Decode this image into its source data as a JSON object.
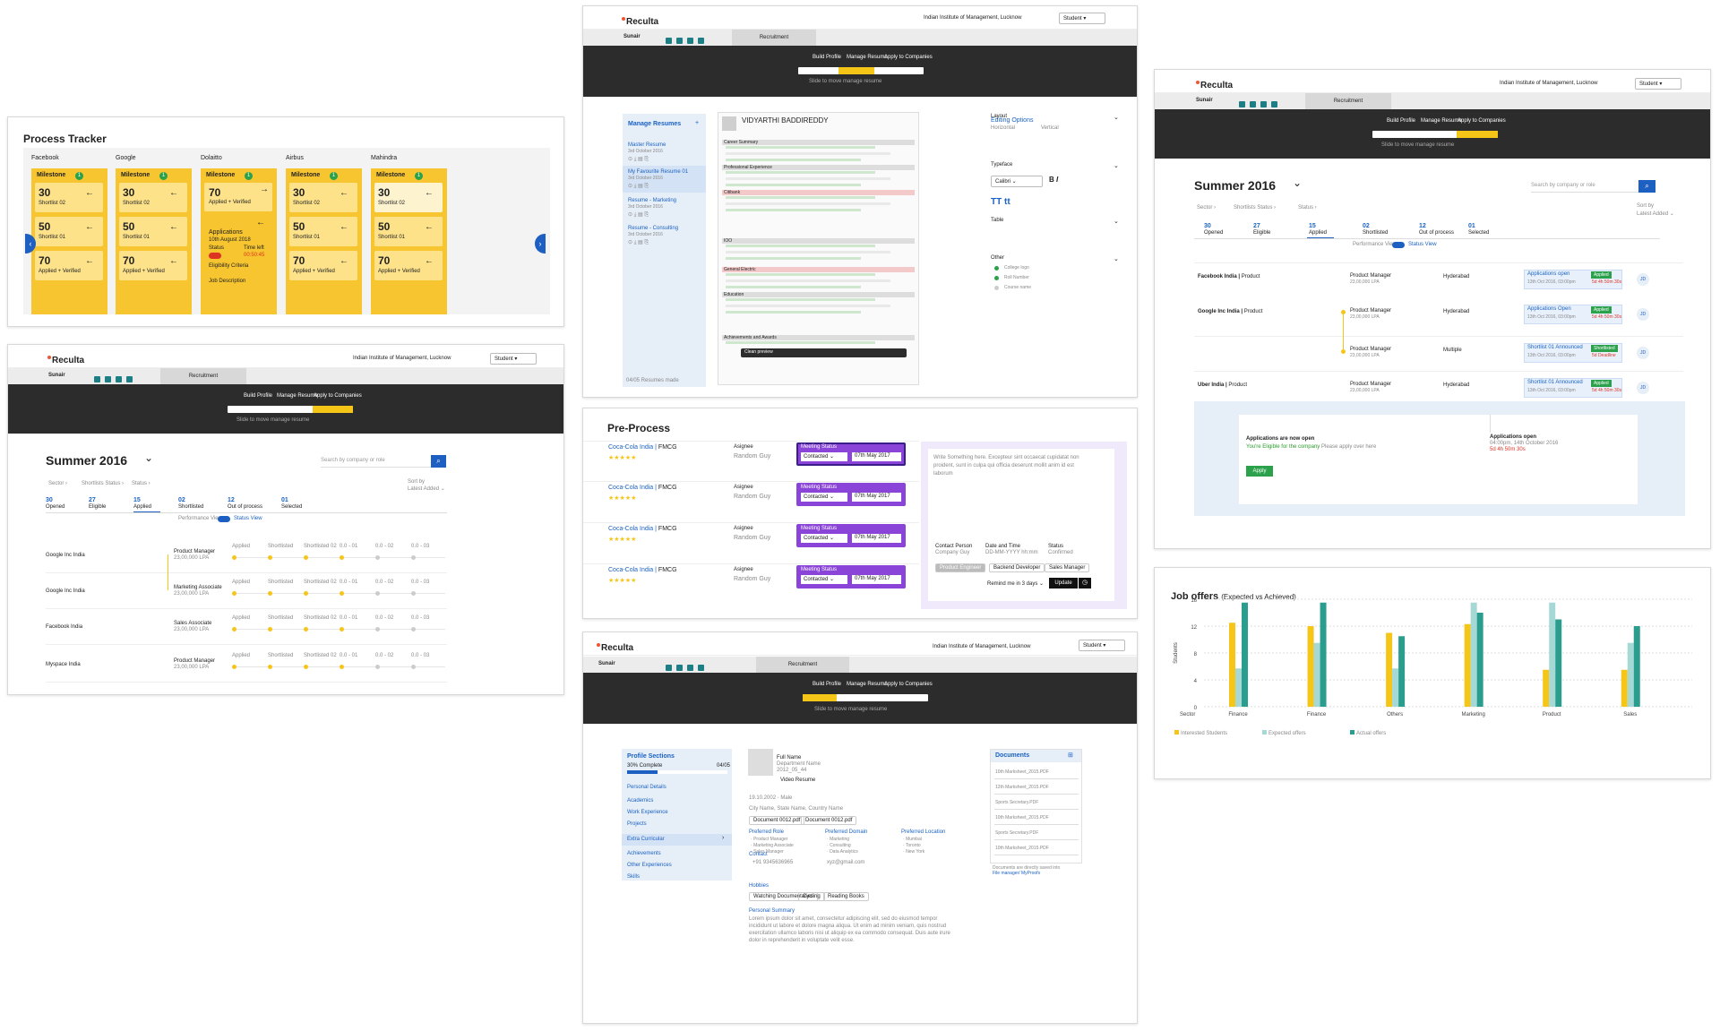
{
  "process": {
    "title": "Process Tracker",
    "companies": [
      "Facebook",
      "Google",
      "Dolaitto",
      "Airbus",
      "Mahindra"
    ],
    "milestone": "Milestone",
    "m_count": "1",
    "n30": "30",
    "l30": "Shortlist 02",
    "n50": "50",
    "l50": "Shortlist 01",
    "n70": "70",
    "l70": "Applied + Verified",
    "d_apps": "Applications",
    "d_date": "10th August 2018",
    "d_status": "Status",
    "d_time": "Time left",
    "d_clock": "00:50:45",
    "d_elig": "Eligibility Criteria",
    "d_job": "Job Description"
  },
  "p2": {
    "logo": "Reculta",
    "inst": "Indian Institute of Management, Lucknow",
    "role": "Student",
    "user": "Sunair",
    "tab": "Recruitment",
    "steps": [
      "Build Profile",
      "Manage Resume",
      "Apply to Companies"
    ],
    "hint": "Slide to move manage resume",
    "title": "Summer 2016",
    "search": "Search by company or role",
    "filters": [
      "Sector",
      "Shortlists Status",
      "Status"
    ],
    "sortby": "Sort by",
    "sortval": "Latest Added",
    "stats": [
      {
        "n": "30",
        "l": "Opened"
      },
      {
        "n": "27",
        "l": "Eligible"
      },
      {
        "n": "15",
        "l": "Applied"
      },
      {
        "n": "02",
        "l": "Shortlisted"
      },
      {
        "n": "12",
        "l": "Out of process"
      },
      {
        "n": "01",
        "l": "Selected"
      }
    ],
    "view_a": "Performance View",
    "view_b": "Status View",
    "rows": [
      {
        "c": "Google Inc India",
        "r": "Product Manager",
        "s": "23,00,000 LPA"
      },
      {
        "c": "Google Inc India",
        "r": "Marketing Associate",
        "s": "23,00,000 LPA"
      },
      {
        "c": "Facebook India",
        "r": "Sales Associate",
        "s": "23,00,000 LPA"
      },
      {
        "c": "Myspace India",
        "r": "Product Manager",
        "s": "23,00,000 LPA"
      }
    ],
    "tl": [
      "Applied",
      "Shortlisted",
      "Shortlisted 02",
      "0.0 - 01",
      "0.0 - 02",
      "0.0 - 03"
    ]
  },
  "p3": {
    "logo": "Reculta",
    "inst": "Indian Institute of Management, Lucknow",
    "role": "Student",
    "user": "Sunair",
    "tab": "Recruitment",
    "steps": [
      "Build Profile",
      "Manage Resume",
      "Apply to Companies"
    ],
    "hint": "Slide to move manage resume",
    "side_title": "Manage Resumes",
    "resumes": [
      {
        "n": "Master Resume",
        "d": "3rd October 2016"
      },
      {
        "n": "My Favourite Resume 01",
        "d": "3rd October 2016"
      },
      {
        "n": "Resume - Marketing",
        "d": "3rd October 2016"
      },
      {
        "n": "Resume - Consulting",
        "d": "3rd October 2016"
      }
    ],
    "name": "VIDYARTHI BADDIREDDY",
    "sections": [
      "Career Summary",
      "Professional Experience",
      "Citibank",
      "IOO",
      "General Electric",
      "Education",
      "Achievements and Awards"
    ],
    "edit_title": "Editing Options",
    "groups": [
      "Layout",
      "Typeface",
      "Table",
      "Other"
    ],
    "lay": [
      "Horizontal",
      "Vertical"
    ],
    "font": "Calibri",
    "other": [
      "College logo",
      "Roll Number",
      "Course name"
    ],
    "footer": "04/05 Resumes made",
    "clean": "Clean preview"
  },
  "p4": {
    "title": "Pre-Process",
    "rows": [
      {
        "c": "Coca-Cola India",
        "s": "FMCG",
        "a": "Asignee",
        "n": "Random Guy",
        "ms": "Meeting Status",
        "st": "Contacted",
        "d": "07th May 2017"
      },
      {
        "c": "Coca-Cola India",
        "s": "FMCG",
        "a": "Asignee",
        "n": "Random Guy",
        "ms": "Meeting Status",
        "st": "Contacted",
        "d": "07th May 2017"
      },
      {
        "c": "Coca-Cola India",
        "s": "FMCG",
        "a": "Asignee",
        "n": "Random Guy",
        "ms": "Meeting Status",
        "st": "Contacted",
        "d": "07th May 2017"
      },
      {
        "c": "Coca-Cola India",
        "s": "FMCG",
        "a": "Asignee",
        "n": "Random Guy",
        "ms": "Meeting Status",
        "st": "Contacted",
        "d": "07th May 2017"
      }
    ],
    "note": "Write Something here. Excepteur sint occaecat cupidatat non proident, sunt in culpa qui officia deserunt mollit anim id est laborum",
    "cp": "Contact Person",
    "cpv": "Company Guy",
    "dt": "Date and Time",
    "dtv": "DD-MM-YYYY hh:mm",
    "stl": "Status",
    "stv": "Confirmed",
    "chips": [
      "Product Engineer",
      "Backend Developer",
      "Sales Manager"
    ],
    "remind": "Remind me in 3 days",
    "update": "Update"
  },
  "p5": {
    "logo": "Reculta",
    "inst": "Indian Institute of Management, Lucknow",
    "role": "Student",
    "user": "Sunair",
    "tab": "Recruitment",
    "steps": [
      "Build Profile",
      "Manage Resume",
      "Apply to Companies"
    ],
    "hint": "Slide to move manage resume",
    "side_title": "Profile Sections",
    "complete": "30% Complete",
    "count": "04/05",
    "menu": [
      "Personal Details",
      "Academics",
      "Work Experience",
      "Projects",
      "Extra Curricular",
      "Achievements",
      "Other Experiences",
      "Skills"
    ],
    "full": "Full Name",
    "dept": "Department Name",
    "year": "2012_05_44",
    "video": "Video Resume",
    "dob": "19.10.2002 · Male",
    "addr": "City Name, State Name, Country Name",
    "docs": [
      "Document 0012.pdf",
      "Document 0012.pdf"
    ],
    "pref": [
      {
        "h": "Preferred Role",
        "v": [
          "Product Manager",
          "Marketing Associate",
          "Sales Manager"
        ]
      },
      {
        "h": "Preferred Domain",
        "v": [
          "Marketing",
          "Consulting",
          "Data Analytics"
        ]
      },
      {
        "h": "Preferred Location",
        "v": [
          "Mumbai",
          "Toronto",
          "New York"
        ]
      }
    ],
    "contact": "Contact",
    "phone": "+91 9345636965",
    "mail": "xyz@gmail.com",
    "hobbies": "Hobbies",
    "hob": [
      "Watching Documentaries",
      "Cycling",
      "Reading Books"
    ],
    "summary": "Personal Summary",
    "summary_text": "Lorem ipsum dolor sit amet, consectetur adipiscing elit, sed do eiusmod tempor incididunt ut labore et dolore magna aliqua. Ut enim ad minim veniam, quis nostrud exercitation ullamco laboris nisi ut aliquip ex ea commodo consequat. Duis aute irure dolor in reprehenderit in voluptate velit esse.",
    "doc_title": "Documents",
    "doc_list": [
      "10th Marksheet_2015.PDF",
      "12th Marksheet_2015.PDF",
      "Sports Secretary.PDF",
      "10th Marksheet_2015.PDF",
      "Sports Secretary.PDF",
      "10th Marksheet_2015.PDF"
    ],
    "doc_note": "Documents are directly saved into",
    "doc_link": "File manager/ MyProofs"
  },
  "p6": {
    "logo": "Reculta",
    "inst": "Indian Institute of Management, Lucknow",
    "role": "Student",
    "user": "Sunair",
    "tab": "Recruitment",
    "steps": [
      "Build Profile",
      "Manage Resume",
      "Apply to Companies"
    ],
    "hint": "Slide to move manage resume",
    "title": "Summer 2016",
    "search": "Search by company or role",
    "filters": [
      "Sector",
      "Shortlists Status",
      "Status"
    ],
    "sortby": "Sort by",
    "sortval": "Latest Added",
    "stats": [
      {
        "n": "30",
        "l": "Opened"
      },
      {
        "n": "27",
        "l": "Eligible"
      },
      {
        "n": "15",
        "l": "Applied"
      },
      {
        "n": "02",
        "l": "Shortlisted"
      },
      {
        "n": "12",
        "l": "Out of process"
      },
      {
        "n": "01",
        "l": "Selected"
      }
    ],
    "view_a": "Performance View",
    "view_b": "Status View",
    "rows": [
      {
        "c": "Facebook India",
        "d": "Product",
        "r": "Product Manager",
        "s": "23,00,000 LPA",
        "loc": "Hyderabad",
        "p": "Applications open",
        "pd": "13th Oct 2016, 03:00pm",
        "tg": "Applied",
        "dl": "5d 4h 50m 30s"
      },
      {
        "c": "Google Inc India",
        "d": "Product",
        "r": "Product Manager",
        "s": "23,00,000 LPA",
        "loc": "Hyderabad",
        "p": "Applications Open",
        "pd": "13th Oct 2016, 03:00pm",
        "tg": "Applied",
        "dl": "5d 4h 50m 30s"
      },
      {
        "c": "",
        "d": "",
        "r": "Product Manager",
        "s": "23,00,000 LPA",
        "loc": "Multiple",
        "p": "Shortlist 01 Announced",
        "pd": "13th Oct 2016, 03:00pm",
        "tg": "Shortlisted",
        "dl": "5d Deadline"
      },
      {
        "c": "Uber India",
        "d": "Product",
        "r": "Product Manager",
        "s": "23,00,000 LPA",
        "loc": "Hyderabad",
        "p": "Shortlist 01 Announced",
        "pd": "13th Oct 2016, 03:00pm",
        "tg": "Applied",
        "dl": "5d 4h 50m 30s"
      }
    ],
    "jd": "JD",
    "open": "Applications are now open",
    "elig": "You're Eligible for the company",
    "apply_hint": "Please apply over here",
    "apply": "Apply",
    "open2": "Applications open",
    "open2d": "04:00pm, 14th October 2016",
    "open2c": "5d 4h 50m 30s"
  },
  "chart_data": {
    "type": "bar",
    "title": "Job offers",
    "subtitle": "(Expected vs Achieved)",
    "ylabel": "Students",
    "xlabel": "Sector",
    "ylim": [
      0,
      16
    ],
    "yticks": [
      0,
      4,
      8,
      12,
      16
    ],
    "categories": [
      "Finance",
      "Finance",
      "Others",
      "Marketing",
      "Product",
      "Sales"
    ],
    "series": [
      {
        "name": "Interested Students",
        "color": "#f5c518",
        "values": [
          12.5,
          12,
          11,
          12.3,
          5.5,
          5.5
        ]
      },
      {
        "name": "Expected offers",
        "color": "#a6d8d6",
        "values": [
          5.7,
          9.5,
          5.7,
          15.5,
          15.5,
          9.5
        ]
      },
      {
        "name": "Actual offers",
        "color": "#2a9d8f",
        "values": [
          15.5,
          15.5,
          10.5,
          14,
          13,
          12
        ]
      }
    ]
  }
}
